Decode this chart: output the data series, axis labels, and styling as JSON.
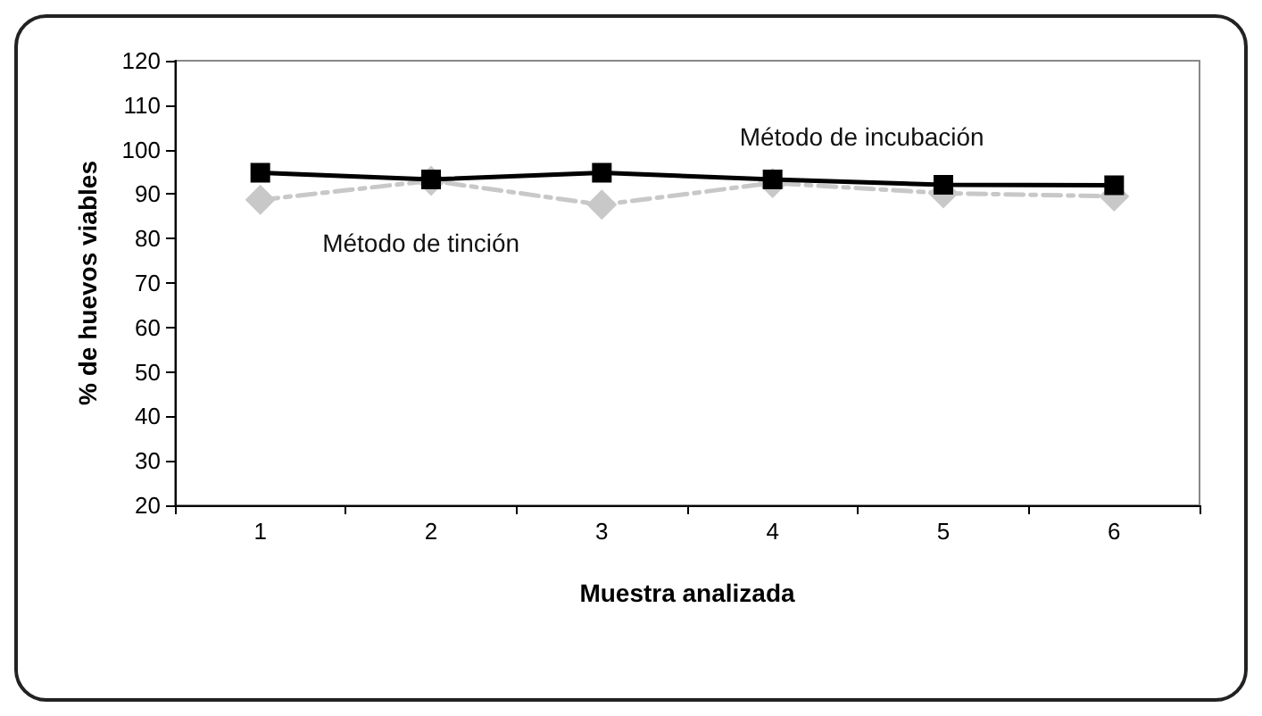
{
  "chart_data": {
    "type": "line",
    "xlabel": "Muestra analizada",
    "ylabel": "% de huevos viables",
    "categories": [
      "1",
      "2",
      "3",
      "4",
      "5",
      "6"
    ],
    "ylim": [
      20,
      120
    ],
    "yticks": [
      20,
      30,
      40,
      50,
      60,
      70,
      80,
      90,
      100,
      110,
      120
    ],
    "grid": false,
    "legend": false,
    "series": [
      {
        "name": "Método de incubación",
        "color": "#000000",
        "marker": "square",
        "line_style": "solid",
        "values": [
          94.8,
          93.3,
          94.8,
          93.3,
          92.1,
          92
        ]
      },
      {
        "name": "Método de tinción",
        "color": "#c8c8c8",
        "marker": "diamond",
        "line_style": "dashed",
        "values": [
          88.7,
          93,
          87.6,
          92.5,
          90.2,
          89.5
        ]
      }
    ]
  }
}
